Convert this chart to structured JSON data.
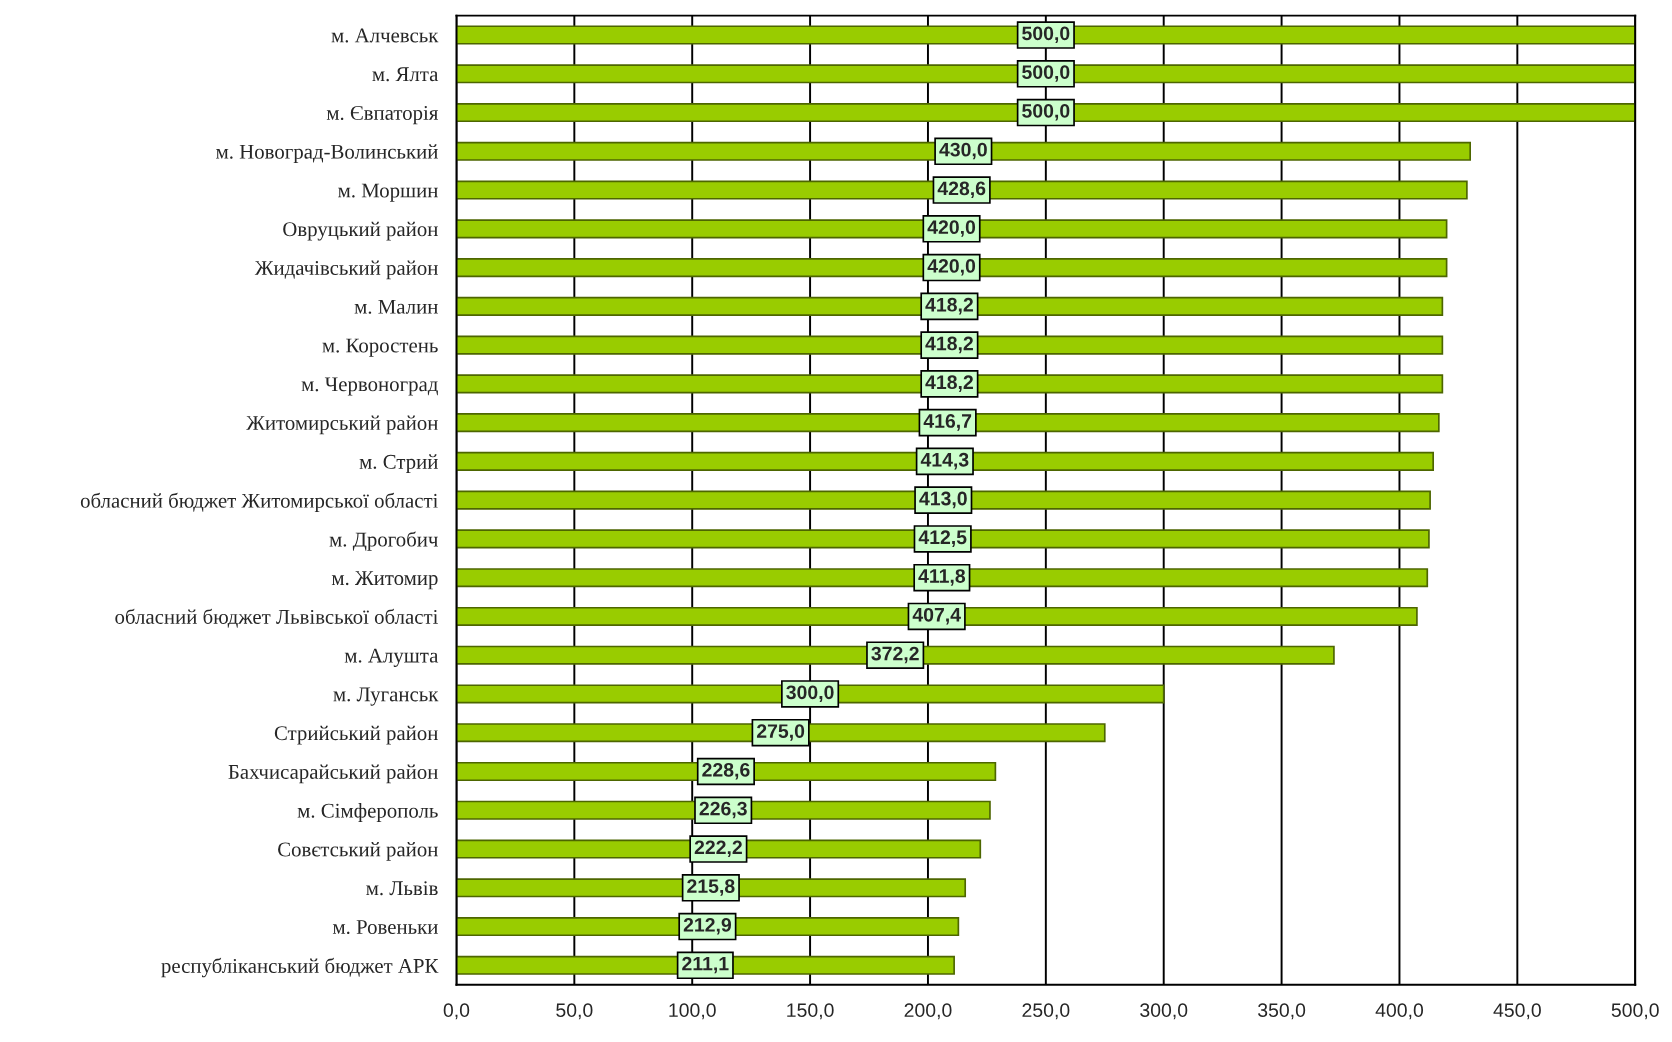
{
  "chart_data": {
    "type": "bar",
    "orientation": "horizontal",
    "categories": [
      "м. Алчевськ",
      "м. Ялта",
      "м. Євпаторія",
      "м. Новоград-Волинський",
      "м. Моршин",
      "Овруцький район",
      "Жидачівський район",
      "м. Малин",
      "м. Коростень",
      "м. Червоноград",
      "Житомирський район",
      "м. Стрий",
      "обласний бюджет Житомирської області",
      "м. Дрогобич",
      "м. Житомир",
      "обласний бюджет Львівської області",
      "м. Алушта",
      "м. Луганськ",
      "Стрийський район",
      "Бахчисарайський район",
      "м. Сімферополь",
      "Совєтський район",
      "м. Львів",
      "м. Ровеньки",
      "республіканський бюджет АРК"
    ],
    "values": [
      500.0,
      500.0,
      500.0,
      430.0,
      428.6,
      420.0,
      420.0,
      418.2,
      418.2,
      418.2,
      416.7,
      414.3,
      413.0,
      412.5,
      411.8,
      407.4,
      372.2,
      300.0,
      275.0,
      228.6,
      226.3,
      222.2,
      215.8,
      212.9,
      211.1
    ],
    "value_labels": [
      "500,0",
      "500,0",
      "500,0",
      "430,0",
      "428,6",
      "420,0",
      "420,0",
      "418,2",
      "418,2",
      "418,2",
      "416,7",
      "414,3",
      "413,0",
      "412,5",
      "411,8",
      "407,4",
      "372,2",
      "300,0",
      "275,0",
      "228,6",
      "226,3",
      "222,2",
      "215,8",
      "212,9",
      "211,1"
    ],
    "color": "#99cc00",
    "xlim": [
      0,
      500
    ],
    "xticks": [
      {
        "value": 0,
        "label": "0,0"
      },
      {
        "value": 50,
        "label": "50,0"
      },
      {
        "value": 100,
        "label": "100,0"
      },
      {
        "value": 150,
        "label": "150,0"
      },
      {
        "value": 200,
        "label": "200,0"
      },
      {
        "value": 250,
        "label": "250,0"
      },
      {
        "value": 300,
        "label": "300,0"
      },
      {
        "value": 350,
        "label": "350,0"
      },
      {
        "value": 400,
        "label": "400,0"
      },
      {
        "value": 450,
        "label": "450,0"
      },
      {
        "value": 500,
        "label": "500,0"
      }
    ],
    "grid": "x",
    "legend": false
  }
}
